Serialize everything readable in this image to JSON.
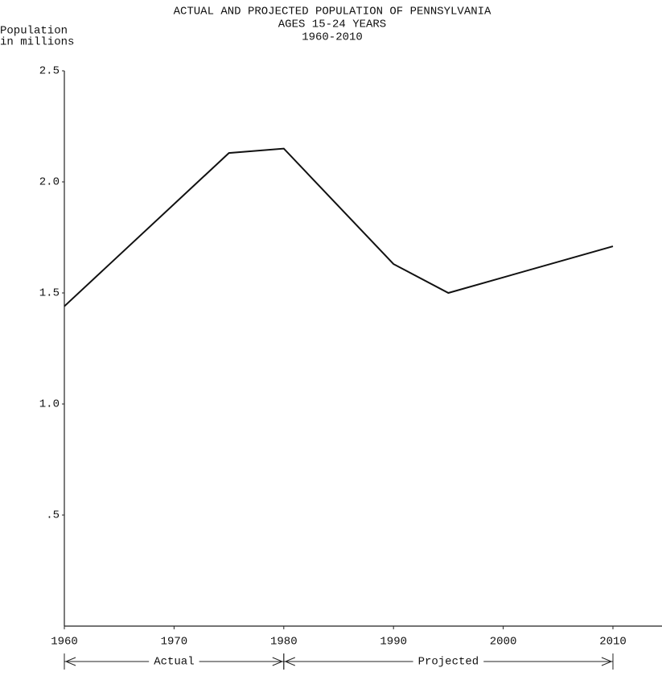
{
  "chart_data": {
    "type": "line",
    "title": "ACTUAL AND PROJECTED POPULATION OF PENNSYLVANIA",
    "subtitle": [
      "AGES 15-24 YEARS",
      "1960-2010"
    ],
    "y_label": [
      "Population",
      "in millions"
    ],
    "x": [
      1960,
      1975,
      1980,
      1990,
      1995,
      2010
    ],
    "series": [
      {
        "color": "#111111",
        "values": [
          1.44,
          2.13,
          2.15,
          1.63,
          1.5,
          1.71
        ]
      }
    ],
    "xlim": [
      1960,
      2010
    ],
    "xticks": [
      1960,
      1970,
      1980,
      1990,
      2000,
      2010
    ],
    "ylim": [
      0,
      2.5
    ],
    "yticks": [
      {
        "value": 0.5,
        "label": ".5"
      },
      {
        "value": 1.0,
        "label": "1.0"
      },
      {
        "value": 1.5,
        "label": "1.5"
      },
      {
        "value": 2.0,
        "label": "2.0"
      },
      {
        "value": 2.5,
        "label": "2.5"
      }
    ],
    "annotations": [
      {
        "text": "Actual",
        "from": 1960,
        "to": 1980
      },
      {
        "text": "Projected",
        "from": 1980,
        "to": 2010
      }
    ]
  }
}
